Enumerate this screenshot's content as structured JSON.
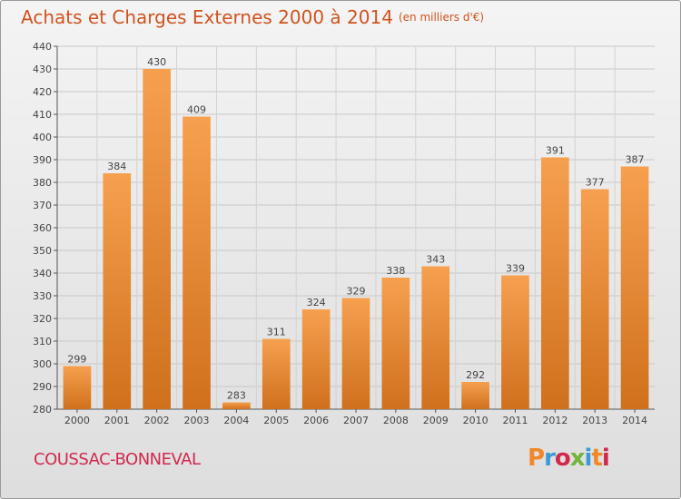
{
  "title": "Achats et Charges Externes 2000 à 2014",
  "title_unit": "(en milliers d'€)",
  "commune": "COUSSAC-BONNEVAL",
  "logo_text": "Proxiti",
  "colors": {
    "title": "#d0531f",
    "commune": "#d0294d",
    "bar_light": "#f6a04f",
    "bar_dark": "#d0701c",
    "logo": [
      "#f0882a",
      "#3a9ad9",
      "#d0294d",
      "#72b53a",
      "#3a9ad9",
      "#f0882a",
      "#d0294d"
    ]
  },
  "chart_data": {
    "type": "bar",
    "categories": [
      "2000",
      "2001",
      "2002",
      "2003",
      "2004",
      "2005",
      "2006",
      "2007",
      "2008",
      "2009",
      "2010",
      "2011",
      "2012",
      "2013",
      "2014"
    ],
    "values": [
      299,
      384,
      430,
      409,
      283,
      311,
      324,
      329,
      338,
      343,
      292,
      339,
      391,
      377,
      387
    ],
    "ylim": [
      280,
      440
    ],
    "yticks": [
      280,
      290,
      300,
      310,
      320,
      330,
      340,
      350,
      360,
      370,
      380,
      390,
      400,
      410,
      420,
      430,
      440
    ],
    "grid": true,
    "xlabel": "",
    "ylabel": ""
  }
}
